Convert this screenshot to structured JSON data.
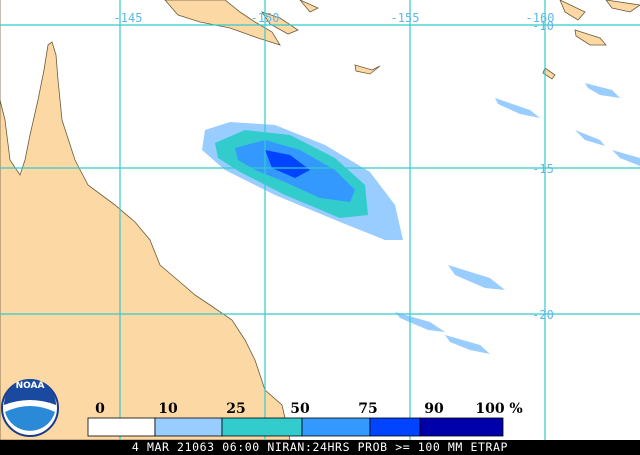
{
  "map": {
    "longitude_labels": [
      "-145",
      "-150",
      "-155",
      "-160"
    ],
    "latitude_labels": [
      "-10",
      "-15",
      "-20"
    ],
    "legend": {
      "ticks": [
        0,
        10,
        25,
        50,
        75,
        90,
        100
      ],
      "unit": "%",
      "colors": [
        "#ffffff",
        "#99ccff",
        "#33cccc",
        "#3399ff",
        "#0044ff",
        "#0000aa"
      ]
    },
    "logo": "NOAA",
    "caption": "4 MAR 21063 06:00 NIRAN:24HRS PROB >= 100 MM ETRAP"
  }
}
